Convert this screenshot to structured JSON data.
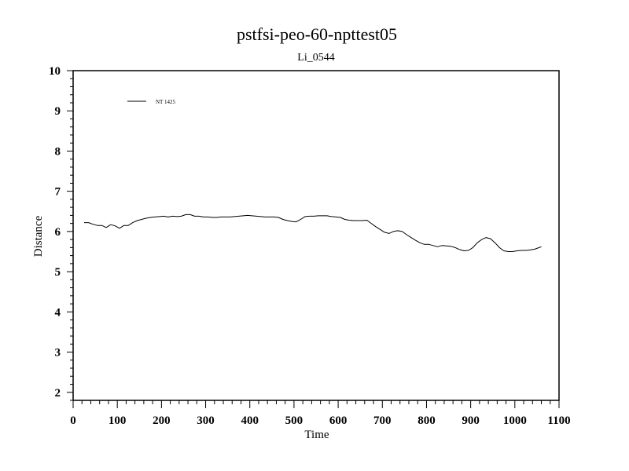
{
  "chart_data": {
    "type": "line",
    "title": "pstfsi-peo-60-npttest05",
    "subtitle": "Li_0544",
    "xlabel": "Time",
    "ylabel": "Distance",
    "xlim": [
      0,
      1100
    ],
    "ylim": [
      1.8,
      10
    ],
    "xticks": [
      0,
      100,
      200,
      300,
      400,
      500,
      600,
      700,
      800,
      900,
      1000,
      1100
    ],
    "yticks": [
      2,
      3,
      4,
      5,
      6,
      7,
      8,
      9,
      10
    ],
    "grid": false,
    "legend_position": "top-left",
    "series": [
      {
        "name": "NT 1425",
        "color": "#000000",
        "x": [
          25,
          35,
          45,
          55,
          65,
          75,
          85,
          95,
          105,
          115,
          125,
          135,
          145,
          155,
          165,
          175,
          185,
          195,
          205,
          215,
          225,
          235,
          245,
          255,
          265,
          275,
          285,
          295,
          305,
          315,
          325,
          335,
          345,
          355,
          365,
          375,
          385,
          395,
          405,
          415,
          425,
          435,
          445,
          455,
          465,
          475,
          485,
          495,
          505,
          515,
          525,
          535,
          545,
          555,
          565,
          575,
          585,
          595,
          605,
          615,
          625,
          635,
          645,
          655,
          665,
          675,
          685,
          695,
          705,
          715,
          725,
          735,
          745,
          755,
          765,
          775,
          785,
          795,
          805,
          815,
          825,
          835,
          845,
          855,
          865,
          875,
          885,
          895,
          905,
          915,
          925,
          935,
          945,
          955,
          965,
          975,
          985,
          995,
          1005,
          1015,
          1025,
          1035,
          1045,
          1055,
          1060
        ],
        "y": [
          6.22,
          6.22,
          6.18,
          6.15,
          6.15,
          6.1,
          6.17,
          6.14,
          6.08,
          6.15,
          6.15,
          6.22,
          6.27,
          6.3,
          6.33,
          6.35,
          6.36,
          6.37,
          6.38,
          6.36,
          6.38,
          6.37,
          6.38,
          6.42,
          6.42,
          6.38,
          6.38,
          6.36,
          6.36,
          6.35,
          6.35,
          6.36,
          6.36,
          6.36,
          6.37,
          6.38,
          6.39,
          6.4,
          6.39,
          6.38,
          6.37,
          6.36,
          6.36,
          6.36,
          6.35,
          6.3,
          6.27,
          6.25,
          6.24,
          6.3,
          6.37,
          6.38,
          6.38,
          6.39,
          6.39,
          6.39,
          6.37,
          6.36,
          6.35,
          6.3,
          6.28,
          6.27,
          6.27,
          6.27,
          6.28,
          6.2,
          6.12,
          6.05,
          5.98,
          5.95,
          6.0,
          6.02,
          6.0,
          5.92,
          5.85,
          5.78,
          5.72,
          5.68,
          5.68,
          5.65,
          5.62,
          5.65,
          5.64,
          5.63,
          5.6,
          5.55,
          5.52,
          5.53,
          5.6,
          5.72,
          5.8,
          5.85,
          5.82,
          5.72,
          5.6,
          5.52,
          5.5,
          5.5,
          5.52,
          5.53,
          5.53,
          5.54,
          5.56,
          5.6,
          5.62
        ]
      }
    ]
  }
}
